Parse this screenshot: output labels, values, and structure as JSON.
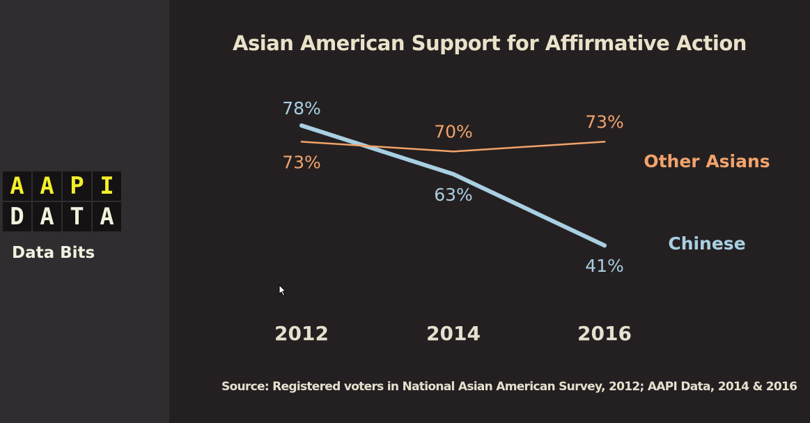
{
  "sidebar": {
    "logo_row1": [
      "A",
      "A",
      "P",
      "I"
    ],
    "logo_row2": [
      "D",
      "A",
      "T",
      "A"
    ],
    "tagline": "Data Bits"
  },
  "source": "Source: Registered voters in National Asian American Survey, 2012; AAPI Data, 2014 & 2016",
  "chart_data": {
    "type": "line",
    "title": "Asian American Support for Affirmative Action",
    "x": [
      "2012",
      "2014",
      "2016"
    ],
    "ylim": [
      30,
      85
    ],
    "grid": false,
    "legend": "right, inline labels",
    "series": [
      {
        "name": "Chinese",
        "values": [
          78,
          63,
          41
        ],
        "labels": [
          "78%",
          "63%",
          "41%"
        ],
        "color": "#a9cfe2"
      },
      {
        "name": "Other Asians",
        "values": [
          73,
          70,
          73
        ],
        "labels": [
          "73%",
          "70%",
          "73%"
        ],
        "color": "#f2a36c"
      }
    ]
  }
}
